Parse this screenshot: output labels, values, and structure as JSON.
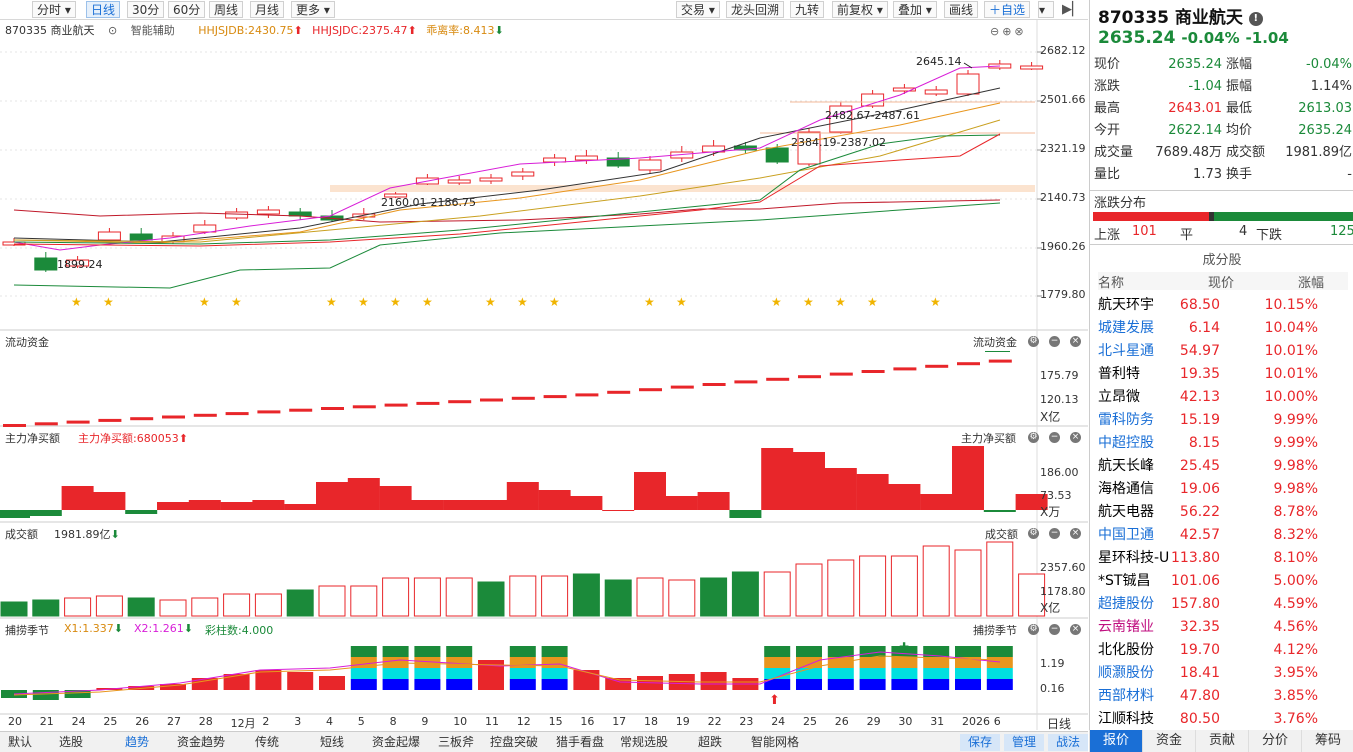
{
  "toolbar": {
    "tabs": [
      "分时",
      "日线",
      "30分",
      "60分",
      "周线",
      "月线",
      "更多"
    ],
    "right_buttons": [
      "交易",
      "龙头回溯",
      "九转",
      "前复权",
      "叠加",
      "画线",
      "自选"
    ]
  },
  "legend": {
    "stock": "870335 商业航天",
    "assist": "智能辅助",
    "jdb": "HHJSJDB:2430.75",
    "jdc": "HHJSJDC:2375.47",
    "gao": "乖离率:8.413"
  },
  "price_axis": [
    "2682.12",
    "2501.66",
    "2321.19",
    "2140.73",
    "1960.26",
    "1779.80"
  ],
  "annotations": [
    "2645.14",
    "2482.67-2487.61",
    "2384.19-2387.02",
    "2160.01-2186.75",
    "1899.24"
  ],
  "panels": {
    "flow": {
      "title": "流动资金",
      "title_right": "流动资金",
      "axis": [
        "175.79",
        "120.13"
      ],
      "unit": "X亿"
    },
    "net": {
      "title": "主力净买额",
      "value_label": "主力净买额:680053",
      "title_right": "主力净买额",
      "axis": [
        "186.00",
        "73.53"
      ],
      "unit": "X万"
    },
    "vol": {
      "title": "成交额",
      "value_label": "1981.89亿",
      "title_right": "成交额",
      "axis": [
        "2357.60",
        "1178.80"
      ],
      "unit": "X亿"
    },
    "season": {
      "title": "捕捞季节",
      "x1": "X1:1.337",
      "x2": "X2:1.261",
      "bars": "彩柱数:4.000",
      "title_right": "捕捞季节",
      "axis": [
        "1.19",
        "0.16"
      ]
    }
  },
  "dates": [
    "20",
    "21",
    "24",
    "25",
    "26",
    "27",
    "28",
    "12月",
    "2",
    "3",
    "4",
    "5",
    "8",
    "9",
    "10",
    "11",
    "12",
    "15",
    "16",
    "17",
    "18",
    "19",
    "22",
    "23",
    "24",
    "25",
    "26",
    "29",
    "30",
    "31",
    "2026",
    "6"
  ],
  "period_label": "日线",
  "bottom_tabs": [
    "默认",
    "选股",
    "趋势",
    "资金趋势",
    "传统",
    "短线",
    "资金起爆",
    "三板斧",
    "控盘突破",
    "猎手看盘",
    "常规选股",
    "超跌",
    "智能网格"
  ],
  "bottom_right": [
    "保存",
    "管理",
    "战法"
  ],
  "quote": {
    "code": "870335",
    "name": "商业航天",
    "price": "2635.24",
    "change_pct": "-0.04%",
    "change": "-1.04",
    "rows": [
      [
        "现价",
        "2635.24",
        "涨幅",
        "-0.04%"
      ],
      [
        "涨跌",
        "-1.04",
        "振幅",
        "1.14%"
      ],
      [
        "最高",
        "2643.01",
        "最低",
        "2613.03"
      ],
      [
        "今开",
        "2622.14",
        "均价",
        "2635.24"
      ],
      [
        "成交量",
        "7689.48万",
        "成交额",
        "1981.89亿"
      ],
      [
        "量比",
        "1.73",
        "换手",
        "-"
      ]
    ],
    "dist_title": "涨跌分布",
    "up_label": "上涨",
    "up": "101",
    "flat_label": "平",
    "flat": "4",
    "down_label": "下跌",
    "down": "125"
  },
  "components": {
    "title": "成分股",
    "headers": [
      "名称",
      "现价",
      "涨幅"
    ],
    "rows": [
      [
        "航天环宇",
        "68.50",
        "10.15%"
      ],
      [
        "城建发展",
        "6.14",
        "10.04%"
      ],
      [
        "北斗星通",
        "54.97",
        "10.01%"
      ],
      [
        "普利特",
        "19.35",
        "10.01%"
      ],
      [
        "立昂微",
        "42.13",
        "10.00%"
      ],
      [
        "雷科防务",
        "15.19",
        "9.99%"
      ],
      [
        "中超控股",
        "8.15",
        "9.99%"
      ],
      [
        "航天长峰",
        "25.45",
        "9.98%"
      ],
      [
        "海格通信",
        "19.06",
        "9.98%"
      ],
      [
        "航天电器",
        "56.22",
        "8.78%"
      ],
      [
        "中国卫通",
        "42.57",
        "8.32%"
      ],
      [
        "星环科技-U",
        "113.80",
        "8.10%"
      ],
      [
        "*ST铖昌",
        "101.06",
        "5.00%"
      ],
      [
        "超捷股份",
        "157.80",
        "4.59%"
      ],
      [
        "云南锗业",
        "32.35",
        "4.56%"
      ],
      [
        "北化股份",
        "19.70",
        "4.12%"
      ],
      [
        "顺灏股份",
        "18.41",
        "3.95%"
      ],
      [
        "西部材料",
        "47.80",
        "3.85%"
      ],
      [
        "江顺科技",
        "80.50",
        "3.76%"
      ]
    ],
    "name_colors": [
      "#000",
      "#1a6fd6",
      "#1a6fd6",
      "#000",
      "#000",
      "#1a6fd6",
      "#1a6fd6",
      "#000",
      "#000",
      "#000",
      "#1a6fd6",
      "#000",
      "#000",
      "#1a6fd6",
      "#c01080",
      "#000",
      "#1a6fd6",
      "#1a6fd6",
      "#000"
    ]
  },
  "side_tabs": [
    "报价",
    "资金",
    "贡献",
    "分价",
    "筹码"
  ],
  "colors": {
    "up": "#e8262a",
    "down": "#1b8a3a",
    "blue": "#1a6fd6",
    "orange": "#e8961e",
    "magenta": "#d81ed8"
  }
}
